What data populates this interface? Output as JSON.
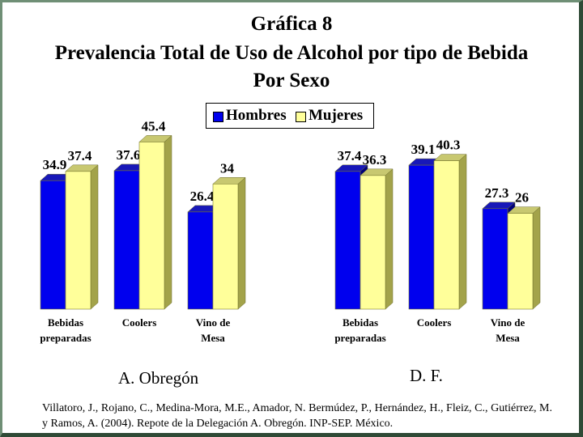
{
  "title_lines": [
    "Gráfica 8",
    "Prevalencia Total de Uso de Alcohol por tipo de Bebida",
    "Por Sexo"
  ],
  "colors": {
    "hombres": "#0000ee",
    "mujeres": "#ffff9a",
    "frame": "#2f4a36"
  },
  "legend": [
    {
      "name": "Hombres",
      "color": "#0000ee"
    },
    {
      "name": "Mujeres",
      "color": "#ffff9a"
    }
  ],
  "panels": [
    {
      "label": "A. Obregón"
    },
    {
      "label": "D. F."
    }
  ],
  "citation": "Villatoro, J., Rojano, C., Medina-Mora, M.E., Amador, N. Bermúdez, P., Hernández, H., Fleiz, C., Gutiérrez, M. y Ramos, A. (2004). Repote de la Delegación A. Obregón. INP-SEP. México.",
  "chart_data": [
    {
      "type": "bar",
      "categories": [
        [
          "Bebidas",
          "preparadas"
        ],
        [
          "Coolers"
        ],
        [
          "Vino de",
          "Mesa"
        ]
      ],
      "series": [
        {
          "name": "Hombres",
          "values": [
            34.9,
            37.6,
            26.4
          ],
          "labels": [
            "34.9",
            "37.6",
            "26.4"
          ]
        },
        {
          "name": "Mujeres",
          "values": [
            37.4,
            45.4,
            34
          ],
          "labels": [
            "37.4",
            "45.4",
            "34"
          ]
        }
      ],
      "title": "A. Obregón",
      "style": "3d"
    },
    {
      "type": "bar",
      "categories": [
        [
          "Bebidas",
          "preparadas"
        ],
        [
          "Coolers"
        ],
        [
          "Vino de",
          "Mesa"
        ]
      ],
      "series": [
        {
          "name": "Hombres",
          "values": [
            37.4,
            39.1,
            27.3
          ],
          "labels": [
            "37.4",
            "39.1",
            "27.3"
          ]
        },
        {
          "name": "Mujeres",
          "values": [
            36.3,
            40.3,
            26
          ],
          "labels": [
            "36.3",
            "40.3",
            "26"
          ]
        }
      ],
      "title": "D. F.",
      "style": "3d"
    }
  ]
}
